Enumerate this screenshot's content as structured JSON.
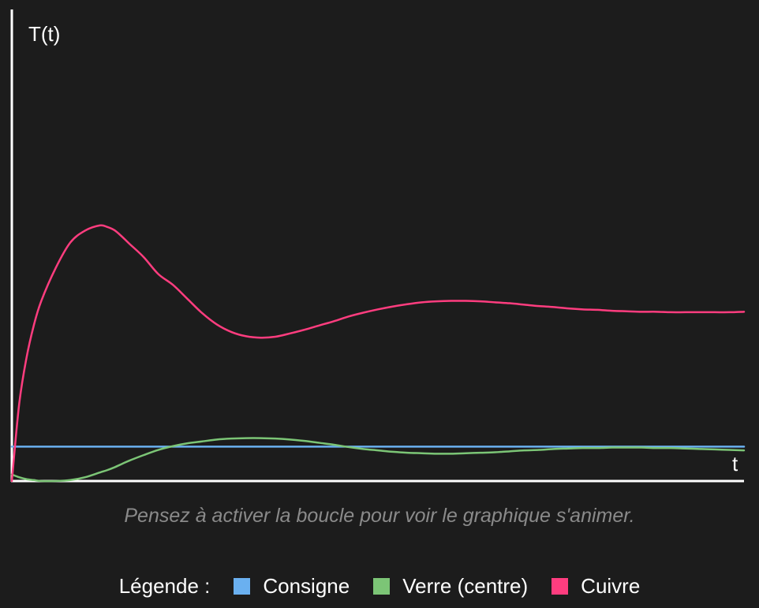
{
  "chart_data": {
    "type": "line",
    "ylabel": "T(t)",
    "xlabel": "t",
    "grid": false,
    "xlim": [
      0,
      100
    ],
    "ylim": [
      0,
      100
    ],
    "x": [
      0,
      1,
      2,
      3,
      4,
      6,
      8,
      10,
      12,
      13,
      14,
      15,
      16,
      18,
      20,
      22,
      24,
      26,
      28,
      30,
      32,
      34,
      36,
      38,
      40,
      42,
      44,
      46,
      48,
      50,
      52,
      54,
      56,
      58,
      60,
      62,
      64,
      66,
      68,
      70,
      72,
      74,
      76,
      78,
      80,
      82,
      84,
      86,
      88,
      90,
      92,
      94,
      96,
      98,
      100
    ],
    "series": [
      {
        "name": "Consigne",
        "color": "#6ab0f0",
        "values": [
          7.3,
          7.3,
          7.3,
          7.3,
          7.3,
          7.3,
          7.3,
          7.3,
          7.3,
          7.3,
          7.3,
          7.3,
          7.3,
          7.3,
          7.3,
          7.3,
          7.3,
          7.3,
          7.3,
          7.3,
          7.3,
          7.3,
          7.3,
          7.3,
          7.3,
          7.3,
          7.3,
          7.3,
          7.3,
          7.3,
          7.3,
          7.3,
          7.3,
          7.3,
          7.3,
          7.3,
          7.3,
          7.3,
          7.3,
          7.3,
          7.3,
          7.3,
          7.3,
          7.3,
          7.3,
          7.3,
          7.3,
          7.3,
          7.3,
          7.3,
          7.3,
          7.3,
          7.3,
          7.3,
          7.3
        ]
      },
      {
        "name": "Verre (centre)",
        "color": "#7cc576",
        "values": [
          1.4,
          0.8,
          0.4,
          0.2,
          0.0,
          0.0,
          0.2,
          0.8,
          1.8,
          2.3,
          2.9,
          3.6,
          4.3,
          5.5,
          6.6,
          7.4,
          8.0,
          8.4,
          8.8,
          9.0,
          9.1,
          9.1,
          9.0,
          8.8,
          8.5,
          8.1,
          7.7,
          7.2,
          6.8,
          6.5,
          6.2,
          6.0,
          5.9,
          5.8,
          5.8,
          5.9,
          6.0,
          6.1,
          6.3,
          6.5,
          6.6,
          6.8,
          6.9,
          7.0,
          7.0,
          7.1,
          7.1,
          7.1,
          7.0,
          7.0,
          6.9,
          6.8,
          6.7,
          6.6,
          6.5
        ]
      },
      {
        "name": "Cuivre",
        "color": "#ff3d7f",
        "values": [
          0.0,
          16.3,
          26.1,
          33.0,
          38.1,
          45.2,
          50.6,
          53.1,
          54.2,
          53.9,
          53.2,
          51.9,
          50.4,
          47.5,
          43.9,
          41.6,
          38.6,
          35.6,
          33.2,
          31.6,
          30.7,
          30.4,
          30.6,
          31.3,
          32.1,
          33.0,
          33.9,
          34.9,
          35.7,
          36.4,
          37.0,
          37.5,
          37.9,
          38.1,
          38.2,
          38.2,
          38.1,
          37.9,
          37.7,
          37.4,
          37.1,
          36.9,
          36.6,
          36.4,
          36.3,
          36.1,
          36.0,
          35.9,
          35.9,
          35.8,
          35.8,
          35.8,
          35.8,
          35.8,
          35.9
        ]
      }
    ],
    "legend": {
      "title": "Légende :",
      "placement": "bottom",
      "entries": [
        "Consigne",
        "Verre (centre)",
        "Cuivre"
      ]
    },
    "note": "Pensez à activer la boucle pour voir le graphique s'animer."
  }
}
